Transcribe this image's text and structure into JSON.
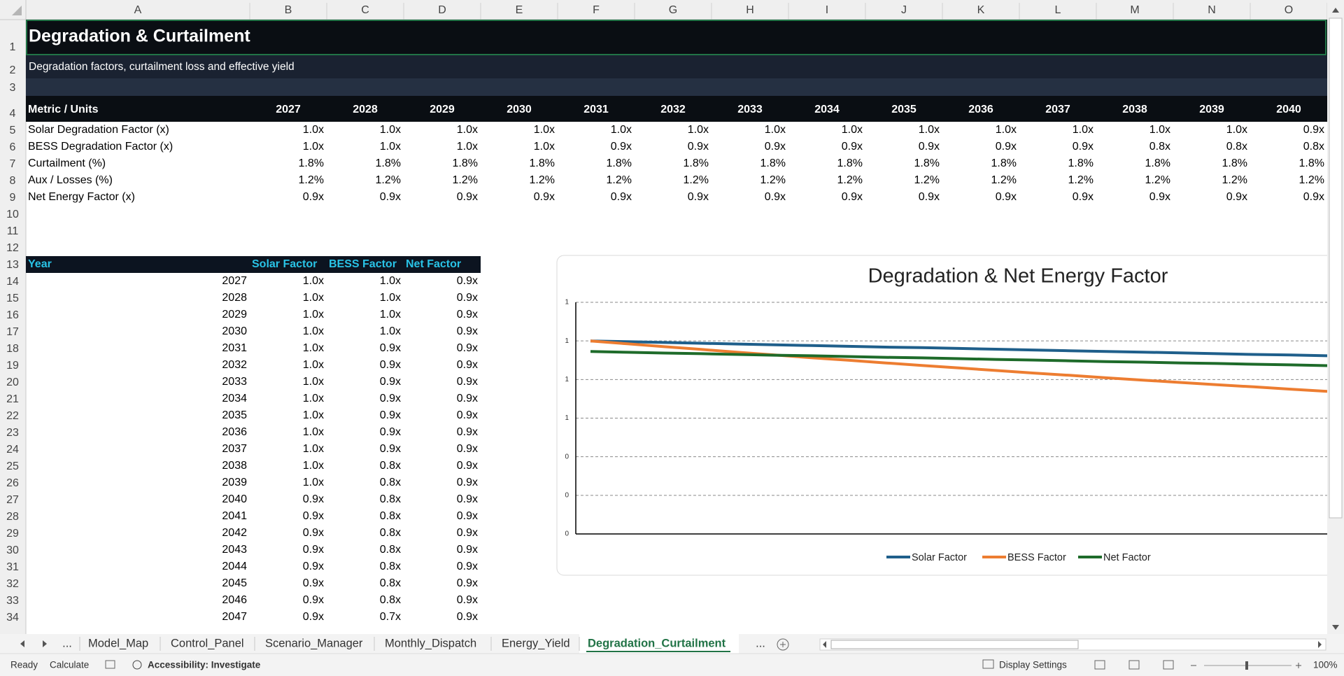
{
  "sheet": {
    "columns": [
      "A",
      "B",
      "C",
      "D",
      "E",
      "F",
      "G",
      "H",
      "I",
      "J",
      "K",
      "L",
      "M",
      "N",
      "O"
    ],
    "rows": [
      1,
      2,
      3,
      4,
      5,
      6,
      7,
      8,
      9,
      10,
      11,
      12,
      13,
      14,
      15,
      16,
      17,
      18,
      19,
      20,
      21,
      22,
      23,
      24,
      25,
      26,
      27,
      28,
      29,
      30,
      31,
      32,
      33,
      34
    ]
  },
  "title": "Degradation & Curtailment",
  "subtitle": "Degradation factors, curtailment loss and effective yield",
  "summary_table": {
    "header": [
      "Metric / Units",
      "2027",
      "2028",
      "2029",
      "2030",
      "2031",
      "2032",
      "2033",
      "2034",
      "2035",
      "2036",
      "2037",
      "2038",
      "2039",
      "2040"
    ],
    "rows": [
      [
        "Solar Degradation Factor (x)",
        "1.0x",
        "1.0x",
        "1.0x",
        "1.0x",
        "1.0x",
        "1.0x",
        "1.0x",
        "1.0x",
        "1.0x",
        "1.0x",
        "1.0x",
        "1.0x",
        "1.0x",
        "0.9x"
      ],
      [
        "BESS Degradation Factor (x)",
        "1.0x",
        "1.0x",
        "1.0x",
        "1.0x",
        "0.9x",
        "0.9x",
        "0.9x",
        "0.9x",
        "0.9x",
        "0.9x",
        "0.9x",
        "0.8x",
        "0.8x",
        "0.8x"
      ],
      [
        "Curtailment (%)",
        "1.8%",
        "1.8%",
        "1.8%",
        "1.8%",
        "1.8%",
        "1.8%",
        "1.8%",
        "1.8%",
        "1.8%",
        "1.8%",
        "1.8%",
        "1.8%",
        "1.8%",
        "1.8%"
      ],
      [
        "Aux / Losses (%)",
        "1.2%",
        "1.2%",
        "1.2%",
        "1.2%",
        "1.2%",
        "1.2%",
        "1.2%",
        "1.2%",
        "1.2%",
        "1.2%",
        "1.2%",
        "1.2%",
        "1.2%",
        "1.2%"
      ],
      [
        "Net Energy Factor (x)",
        "0.9x",
        "0.9x",
        "0.9x",
        "0.9x",
        "0.9x",
        "0.9x",
        "0.9x",
        "0.9x",
        "0.9x",
        "0.9x",
        "0.9x",
        "0.9x",
        "0.9x",
        "0.9x"
      ]
    ]
  },
  "year_table": {
    "header": [
      "Year",
      "Solar Factor",
      "BESS Factor",
      "Net Factor"
    ],
    "rows": [
      [
        "2027",
        "1.0x",
        "1.0x",
        "0.9x"
      ],
      [
        "2028",
        "1.0x",
        "1.0x",
        "0.9x"
      ],
      [
        "2029",
        "1.0x",
        "1.0x",
        "0.9x"
      ],
      [
        "2030",
        "1.0x",
        "1.0x",
        "0.9x"
      ],
      [
        "2031",
        "1.0x",
        "0.9x",
        "0.9x"
      ],
      [
        "2032",
        "1.0x",
        "0.9x",
        "0.9x"
      ],
      [
        "2033",
        "1.0x",
        "0.9x",
        "0.9x"
      ],
      [
        "2034",
        "1.0x",
        "0.9x",
        "0.9x"
      ],
      [
        "2035",
        "1.0x",
        "0.9x",
        "0.9x"
      ],
      [
        "2036",
        "1.0x",
        "0.9x",
        "0.9x"
      ],
      [
        "2037",
        "1.0x",
        "0.9x",
        "0.9x"
      ],
      [
        "2038",
        "1.0x",
        "0.8x",
        "0.9x"
      ],
      [
        "2039",
        "1.0x",
        "0.8x",
        "0.9x"
      ],
      [
        "2040",
        "0.9x",
        "0.8x",
        "0.9x"
      ],
      [
        "2041",
        "0.9x",
        "0.8x",
        "0.9x"
      ],
      [
        "2042",
        "0.9x",
        "0.8x",
        "0.9x"
      ],
      [
        "2043",
        "0.9x",
        "0.8x",
        "0.9x"
      ],
      [
        "2044",
        "0.9x",
        "0.8x",
        "0.9x"
      ],
      [
        "2045",
        "0.9x",
        "0.8x",
        "0.9x"
      ],
      [
        "2046",
        "0.9x",
        "0.8x",
        "0.9x"
      ],
      [
        "2047",
        "0.9x",
        "0.7x",
        "0.9x"
      ]
    ]
  },
  "chart_data": {
    "type": "line",
    "title": "Degradation & Net Energy Factor",
    "categories": [
      null,
      null,
      null,
      null,
      null,
      null,
      null,
      null,
      null,
      null,
      null,
      null,
      null,
      null,
      null,
      null,
      null,
      null,
      null,
      null,
      null
    ],
    "series": [
      {
        "name": "Solar Factor",
        "color": "#1f5f8b",
        "values": [
          1.0,
          0.996,
          0.992,
          0.988,
          0.984,
          0.98,
          0.976,
          0.972,
          0.968,
          0.965,
          0.961,
          0.957,
          0.953,
          0.949,
          0.945,
          0.942,
          0.938,
          0.934,
          0.93,
          0.927,
          0.923
        ]
      },
      {
        "name": "BESS Factor",
        "color": "#ed7d31",
        "values": [
          1.0,
          0.985,
          0.97,
          0.956,
          0.941,
          0.927,
          0.913,
          0.9,
          0.886,
          0.873,
          0.86,
          0.847,
          0.834,
          0.822,
          0.809,
          0.797,
          0.785,
          0.773,
          0.762,
          0.75,
          0.739
        ]
      },
      {
        "name": "Net Factor",
        "color": "#1e6b2a",
        "values": [
          0.945,
          0.941,
          0.937,
          0.934,
          0.93,
          0.926,
          0.923,
          0.919,
          0.915,
          0.912,
          0.908,
          0.904,
          0.901,
          0.897,
          0.893,
          0.89,
          0.886,
          0.883,
          0.879,
          0.876,
          0.872
        ]
      }
    ],
    "ylim": [
      0,
      1.2
    ],
    "yticks": [
      0,
      {
        "value": 0.2,
        "label": "0"
      },
      {
        "value": 0.4,
        "label": "0"
      },
      {
        "value": 0.6,
        "label": "1"
      },
      {
        "value": 0.8,
        "label": "1"
      },
      1,
      {
        "value": 1.2,
        "label": "1"
      }
    ],
    "grid": true,
    "legend": "bottom"
  },
  "tabs": {
    "more_left": "...",
    "items": [
      "Model_Map",
      "Control_Panel",
      "Scenario_Manager",
      "Monthly_Dispatch",
      "Energy_Yield",
      "Degradation_Curtailment"
    ],
    "active": 5,
    "more_right": "..."
  },
  "status_bar": {
    "ready": "Ready",
    "calculate": "Calculate",
    "accessibility": "Accessibility: Investigate",
    "display_settings": "Display Settings",
    "zoom": "100%"
  }
}
